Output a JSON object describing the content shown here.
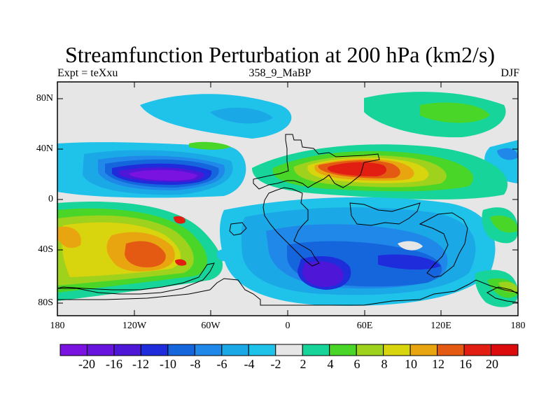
{
  "title": "Streamfunction Perturbation at 200 hPa (km2/s)",
  "subtitle_left": "Expt = teXxu",
  "subtitle_center": "358_9_MaBP",
  "subtitle_right": "DJF",
  "y_axis_labels": [
    "80N",
    "40N",
    "0",
    "40S",
    "80S"
  ],
  "x_axis_labels": [
    "180",
    "120W",
    "60W",
    "0",
    "60E",
    "120E",
    "180"
  ],
  "colorbar": {
    "labels": [
      "-20",
      "-16",
      "-12",
      "-10",
      "-8",
      "-6",
      "-4",
      "-2",
      "2",
      "4",
      "6",
      "8",
      "10",
      "12",
      "16",
      "20"
    ],
    "colors": [
      "#7a12e0",
      "#6814de",
      "#4e16d6",
      "#1f2cdc",
      "#1565dc",
      "#1f88e8",
      "#1aa8e6",
      "#1fc2e8",
      "#e6e6e6",
      "#16d49a",
      "#49d629",
      "#9ed21c",
      "#d8d40e",
      "#e8a510",
      "#e45a12",
      "#e21e12",
      "#dc0c0c"
    ]
  },
  "colors": {
    "background": "#e6e6e6",
    "frame": "#000000"
  }
}
